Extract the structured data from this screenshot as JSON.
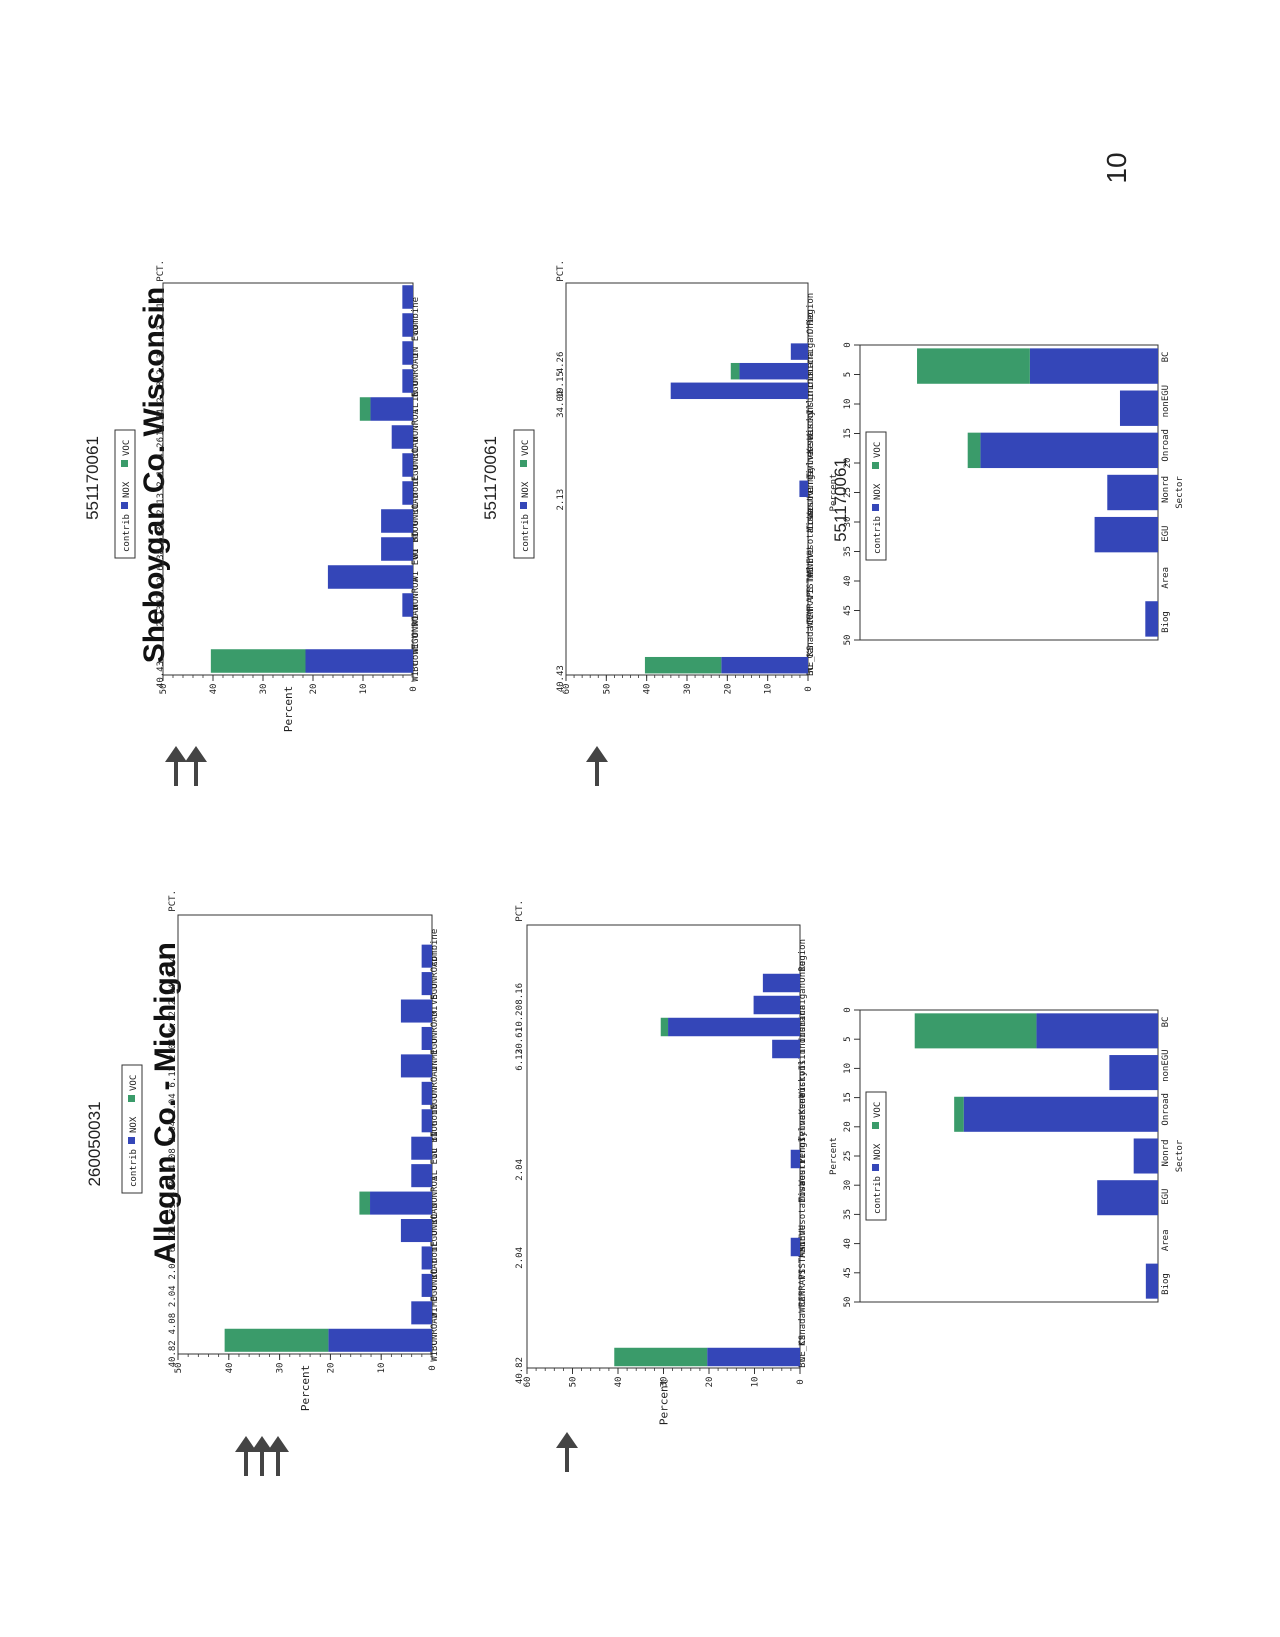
{
  "page": {
    "number": "10"
  },
  "colors": {
    "nox": "#3446b8",
    "voc": "#3a9b6a",
    "axis": "#333333",
    "arrow": "#444444"
  },
  "legend": {
    "title": "contrib",
    "items": [
      "NOX",
      "VOC"
    ]
  },
  "pct_header": "PCT.",
  "allegan": {
    "title": "Allegan Co. - Michigan",
    "site_id": "260050031",
    "sector_site_id": "",
    "arrows": {
      "source": 3,
      "region": 1
    }
  },
  "sheboygan": {
    "title": "Sheboygan Co. Wisconsin",
    "site_id": "551170061",
    "region_site_id": "551170061",
    "sector_site_id": "551170061",
    "arrows": {
      "source": 2,
      "region": 1
    }
  },
  "chart_data": [
    {
      "id": "allegan-source",
      "type": "bar",
      "orientation": "horizontal-stacked",
      "xlabel": "Percent",
      "xlim": [
        0,
        50
      ],
      "xticks": [
        0,
        10,
        20,
        30,
        40,
        50
      ],
      "categories": [
        "combine",
        "VS ONROAD",
        "MI EGU",
        "MI ONROAD",
        "IN EGU",
        "IN ONROAD",
        "IN nonEGU",
        "IL BIOG",
        "IL EGU",
        "IL NONROA",
        "IL ONROAD",
        "IL nonEGU",
        "MO ONROAD",
        "WI EGU",
        "WI ONROAD",
        "BC"
      ],
      "series": [
        {
          "name": "NOX",
          "values": [
            0,
            2.04,
            2.04,
            6.12,
            2.04,
            6.12,
            2.04,
            2.04,
            4.08,
            4.08,
            12.2,
            6.12,
            2.04,
            2.04,
            4.08,
            20.4
          ]
        },
        {
          "name": "VOC",
          "values": [
            0,
            0,
            0,
            0,
            0,
            0,
            0,
            0,
            0,
            0,
            2.09,
            0,
            0,
            0,
            0,
            20.42
          ]
        }
      ],
      "pct": [
        "",
        "2.04",
        "2.04",
        "6.12",
        "2.04",
        "6.12",
        "2.04",
        "2.04",
        "4.08",
        "4.08",
        "14.29",
        "6.12",
        "2.04",
        "2.04",
        "4.08",
        "40.82"
      ]
    },
    {
      "id": "allegan-region",
      "type": "bar",
      "orientation": "horizontal-stacked",
      "xlabel": "Percent",
      "xlim": [
        0,
        60
      ],
      "xticks": [
        0,
        10,
        20,
        30,
        40,
        50,
        60
      ],
      "categories": [
        "Region",
        "Ohio",
        "Michigan",
        "Indiana",
        "Illinois",
        "Wisconsin",
        "Kentucky",
        "Tennessee",
        "Pennsylva",
        "WestVirgi",
        "Missouri",
        "Iowa",
        "Minnesota",
        "MANEVU",
        "VISTAS",
        "CENRAPS",
        "WRAP",
        "Canada",
        "NE_KS",
        "BC"
      ],
      "series": [
        {
          "name": "NOX",
          "values": [
            0,
            0,
            8.16,
            10.2,
            29.0,
            6.12,
            0,
            0,
            0,
            0,
            2.04,
            0,
            0,
            0,
            2.04,
            0,
            0,
            0,
            0,
            20.4
          ]
        },
        {
          "name": "VOC",
          "values": [
            0,
            0,
            0,
            0,
            1.61,
            0,
            0,
            0,
            0,
            0,
            0,
            0,
            0,
            0,
            0,
            0,
            0,
            0,
            0,
            20.42
          ]
        }
      ],
      "pct": [
        "",
        "",
        "8.16",
        "10.20",
        "30.61",
        "6.12",
        "",
        "",
        "",
        "",
        "2.04",
        "",
        "",
        "",
        "2.04",
        "",
        "",
        "",
        "",
        "40.82"
      ]
    },
    {
      "id": "allegan-sector",
      "type": "bar",
      "orientation": "vertical-stacked",
      "xlabel": "Sector",
      "ylabel": "Percent",
      "ylim": [
        0,
        50
      ],
      "yticks": [
        0,
        5,
        10,
        15,
        20,
        25,
        30,
        35,
        40,
        45,
        50
      ],
      "categories": [
        "Biog",
        "Area",
        "EGU",
        "Nonrd",
        "Onroad",
        "nonEGU",
        "BC"
      ],
      "series": [
        {
          "name": "NOX",
          "values": [
            2.04,
            0,
            10.2,
            4.08,
            32.6,
            8.16,
            20.4
          ]
        },
        {
          "name": "VOC",
          "values": [
            0,
            0,
            0,
            0,
            1.6,
            0,
            20.42
          ]
        }
      ]
    },
    {
      "id": "sheboygan-source",
      "type": "bar",
      "orientation": "horizontal-stacked",
      "xlabel": "Percent",
      "xlim": [
        0,
        50
      ],
      "xticks": [
        0,
        10,
        20,
        30,
        40,
        50
      ],
      "categories": [
        "combine",
        "IN EGU",
        "IN ONROAD",
        "IL EGU",
        "IL NONROA",
        "IL ONROAD",
        "IL nonEGU",
        "MO ONROAD",
        "WI BIOG",
        "WI EGU",
        "WI NONROA",
        "WI ONROAD",
        "WI nonEGU",
        "BC"
      ],
      "series": [
        {
          "name": "NOX",
          "values": [
            2.13,
            2.13,
            2.13,
            2.13,
            8.51,
            4.26,
            2.13,
            2.13,
            6.38,
            6.38,
            17.02,
            2.13,
            0,
            21.5
          ]
        },
        {
          "name": "VOC",
          "values": [
            0,
            0,
            0,
            0,
            2.13,
            0,
            0,
            0,
            0,
            0,
            0,
            0,
            0,
            18.93
          ]
        }
      ],
      "pct": [
        "2.13",
        "2.13",
        "2.13",
        "2.13",
        "10.64",
        "4.26",
        "2.13",
        "2.13",
        "6.38",
        "6.38",
        "17.02",
        "2.13",
        "",
        "40.43"
      ]
    },
    {
      "id": "sheboygan-region",
      "type": "bar",
      "orientation": "horizontal-stacked",
      "xlabel": "",
      "xlim": [
        0,
        60
      ],
      "xticks": [
        0,
        10,
        20,
        30,
        40,
        50,
        60
      ],
      "categories": [
        "Region",
        "Ohio",
        "Michigan",
        "Indiana",
        "Illinois",
        "Wisconsin",
        "Kentucky",
        "Tennessee",
        "Pennsylva",
        "WestVirgi",
        "Missouri",
        "Iowa",
        "Minnesota",
        "MANEVU",
        "VISTAS",
        "CENRAPS",
        "WRAP",
        "Canada",
        "NE_KS",
        "BC"
      ],
      "series": [
        {
          "name": "NOX",
          "values": [
            0,
            0,
            0,
            4.26,
            17.0,
            34.04,
            0,
            0,
            0,
            0,
            2.13,
            0,
            0,
            0,
            0,
            0,
            0,
            0,
            0,
            21.5
          ]
        },
        {
          "name": "VOC",
          "values": [
            0,
            0,
            0,
            0,
            2.15,
            0,
            0,
            0,
            0,
            0,
            0,
            0,
            0,
            0,
            0,
            0,
            0,
            0,
            0,
            18.93
          ]
        }
      ],
      "pct": [
        "",
        "",
        "",
        "4.26",
        "19.15",
        "34.04",
        "",
        "",
        "",
        "",
        "2.13",
        "",
        "",
        "",
        "",
        "",
        "",
        "",
        "",
        "40.43"
      ]
    },
    {
      "id": "sheboygan-sector",
      "type": "bar",
      "orientation": "vertical-stacked",
      "xlabel": "Sector",
      "ylabel": "Percent",
      "ylim": [
        0,
        50
      ],
      "yticks": [
        0,
        5,
        10,
        15,
        20,
        25,
        30,
        35,
        40,
        45,
        50
      ],
      "categories": [
        "Biog",
        "Area",
        "EGU",
        "Nonrd",
        "Onroad",
        "nonEGU",
        "BC"
      ],
      "series": [
        {
          "name": "NOX",
          "values": [
            2.13,
            0,
            10.64,
            8.51,
            29.8,
            6.38,
            21.5
          ]
        },
        {
          "name": "VOC",
          "values": [
            0,
            0,
            0,
            0,
            2.13,
            0,
            18.93
          ]
        }
      ]
    }
  ]
}
